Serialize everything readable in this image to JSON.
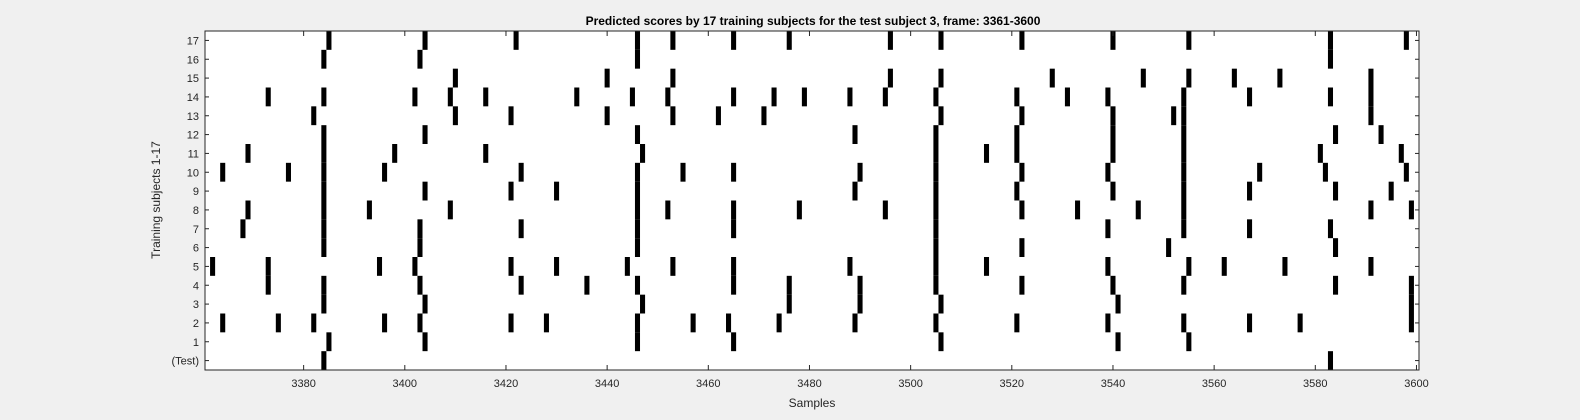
{
  "chart_data": {
    "type": "raster",
    "title": "Predicted scores by 17 training subjects for the test subject 3, frame: 3361-3600",
    "xlabel": "Samples",
    "ylabel": "Training subjects 1-17",
    "xlim": [
      3361,
      3600
    ],
    "xticks": [
      3380,
      3400,
      3420,
      3440,
      3460,
      3480,
      3500,
      3520,
      3540,
      3560,
      3580,
      3600
    ],
    "ytick_labels": [
      "(Test)",
      "1",
      "2",
      "3",
      "4",
      "5",
      "6",
      "7",
      "8",
      "9",
      "10",
      "11",
      "12",
      "13",
      "14",
      "15",
      "16",
      "17"
    ],
    "colors": {
      "background": "#f0f0f0",
      "plot": "#ffffff",
      "mark": "#000000",
      "axis": "#262626"
    },
    "series": [
      {
        "name": "(Test)",
        "events": [
          3384,
          3583
        ]
      },
      {
        "name": "1",
        "events": [
          3385,
          3404,
          3446,
          3465,
          3506,
          3541,
          3555
        ]
      },
      {
        "name": "2",
        "events": [
          3364,
          3375,
          3382,
          3396,
          3403,
          3421,
          3428,
          3446,
          3457,
          3464,
          3474,
          3489,
          3505,
          3521,
          3539,
          3554,
          3567,
          3577,
          3599
        ]
      },
      {
        "name": "3",
        "events": [
          3384,
          3404,
          3447,
          3476,
          3490,
          3506,
          3541,
          3599
        ]
      },
      {
        "name": "4",
        "events": [
          3373,
          3384,
          3403,
          3423,
          3436,
          3446,
          3465,
          3476,
          3490,
          3505,
          3522,
          3540,
          3554,
          3584,
          3599
        ]
      },
      {
        "name": "5",
        "events": [
          3362,
          3373,
          3395,
          3402,
          3421,
          3430,
          3444,
          3453,
          3465,
          3488,
          3505,
          3515,
          3539,
          3555,
          3562,
          3574,
          3591
        ]
      },
      {
        "name": "6",
        "events": [
          3384,
          3403,
          3446,
          3505,
          3522,
          3551,
          3584
        ]
      },
      {
        "name": "7",
        "events": [
          3368,
          3384,
          3403,
          3423,
          3446,
          3465,
          3505,
          3539,
          3554,
          3567,
          3583
        ]
      },
      {
        "name": "8",
        "events": [
          3369,
          3384,
          3393,
          3409,
          3446,
          3452,
          3465,
          3478,
          3495,
          3505,
          3522,
          3533,
          3545,
          3554,
          3591,
          3599
        ]
      },
      {
        "name": "9",
        "events": [
          3384,
          3404,
          3421,
          3430,
          3446,
          3489,
          3505,
          3521,
          3540,
          3554,
          3567,
          3584,
          3595
        ]
      },
      {
        "name": "10",
        "events": [
          3364,
          3377,
          3384,
          3396,
          3423,
          3446,
          3455,
          3465,
          3490,
          3505,
          3522,
          3539,
          3554,
          3569,
          3582,
          3598
        ]
      },
      {
        "name": "11",
        "events": [
          3369,
          3384,
          3398,
          3416,
          3447,
          3505,
          3515,
          3521,
          3540,
          3554,
          3581,
          3597
        ]
      },
      {
        "name": "12",
        "events": [
          3384,
          3404,
          3446,
          3489,
          3505,
          3521,
          3540,
          3554,
          3584,
          3593
        ]
      },
      {
        "name": "13",
        "events": [
          3382,
          3410,
          3421,
          3440,
          3453,
          3462,
          3471,
          3506,
          3522,
          3540,
          3552,
          3554,
          3591
        ]
      },
      {
        "name": "14",
        "events": [
          3373,
          3384,
          3402,
          3409,
          3416,
          3434,
          3445,
          3452,
          3465,
          3473,
          3479,
          3488,
          3495,
          3505,
          3521,
          3531,
          3539,
          3554,
          3567,
          3583,
          3591
        ]
      },
      {
        "name": "15",
        "events": [
          3410,
          3440,
          3453,
          3496,
          3506,
          3528,
          3546,
          3555,
          3564,
          3573,
          3591
        ]
      },
      {
        "name": "16",
        "events": [
          3384,
          3403,
          3446,
          3583
        ]
      },
      {
        "name": "17",
        "events": [
          3385,
          3404,
          3422,
          3446,
          3453,
          3465,
          3476,
          3496,
          3506,
          3522,
          3540,
          3555,
          3583,
          3598
        ]
      }
    ]
  }
}
